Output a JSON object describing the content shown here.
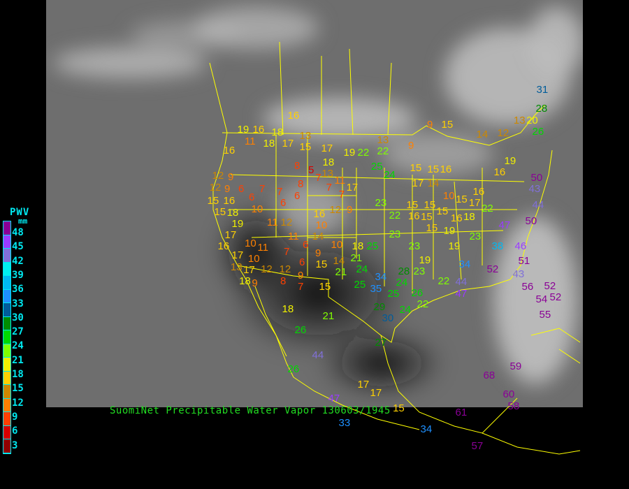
{
  "caption": "SuomiNet Precipitable Water Vapor 130603/1945",
  "legend": {
    "title": "PWV",
    "unit": "mm",
    "labels": [
      "48",
      "45",
      "42",
      "39",
      "36",
      "33",
      "30",
      "27",
      "24",
      "21",
      "18",
      "15",
      "12",
      "9",
      "6",
      "3"
    ],
    "colors": [
      "#8a0096",
      "#9a3cff",
      "#8070d8",
      "#00f0f0",
      "#00b8f0",
      "#1e90ff",
      "#005c9a",
      "#008c00",
      "#00d800",
      "#80ff00",
      "#f0f000",
      "#ffd000",
      "#cc8800",
      "#ff8000",
      "#ff4000",
      "#d80000",
      "#900000"
    ]
  },
  "map": {
    "boundary_color": "#ffff00",
    "background": "grayscale-satellite-infrared"
  },
  "stations": [
    16,
    13,
    18,
    16,
    19,
    16,
    11,
    18,
    17,
    15,
    17,
    19,
    22,
    22,
    13,
    9,
    9,
    15,
    14,
    12,
    13,
    20,
    31,
    28,
    26,
    19,
    16,
    50,
    43,
    44,
    50,
    47,
    38,
    46,
    23,
    19,
    34,
    52,
    51,
    43,
    56,
    52,
    54,
    52,
    55,
    59,
    68,
    60,
    58,
    61,
    34,
    57,
    17,
    17,
    15,
    33,
    47,
    44,
    26,
    26,
    21,
    27,
    30,
    29,
    24,
    22,
    26,
    24,
    25,
    25,
    35,
    34,
    28,
    23,
    19,
    22,
    44,
    47,
    18,
    25,
    21,
    21,
    24,
    14,
    15,
    10,
    14,
    10,
    16,
    12,
    9,
    23,
    22,
    23,
    23,
    16,
    15,
    15,
    15,
    10,
    15,
    17,
    22,
    16,
    16,
    19,
    18,
    15,
    15,
    15,
    16,
    15,
    17,
    14,
    24,
    25,
    18,
    7,
    11,
    7,
    7,
    17,
    5,
    13,
    8,
    8,
    6,
    7,
    6,
    7,
    6,
    6,
    10,
    9,
    12,
    9,
    12,
    15,
    16,
    15,
    18,
    19,
    17,
    16,
    10,
    11,
    7,
    12,
    11,
    11,
    6,
    9,
    17,
    13,
    10,
    12,
    12,
    6,
    9,
    8,
    7,
    15,
    17,
    18,
    9,
    18
  ]
}
